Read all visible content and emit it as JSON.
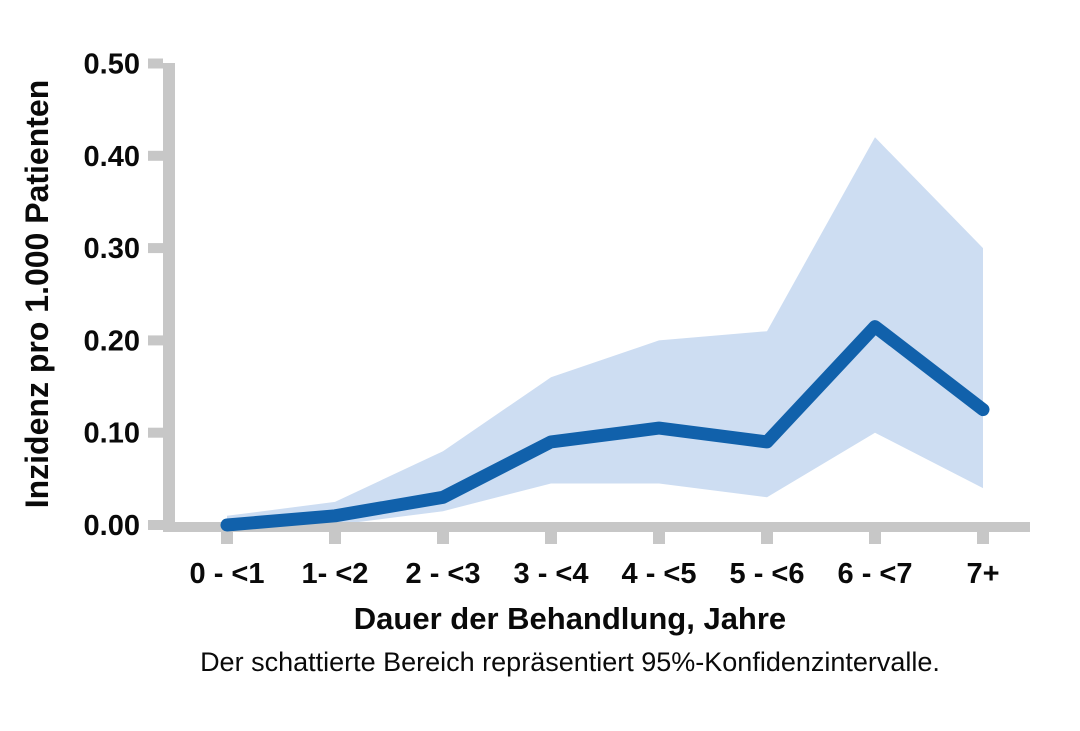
{
  "chart_data": {
    "type": "line",
    "title": "",
    "xlabel": "Dauer der Behandlung, Jahre",
    "ylabel": "Inzidenz pro 1.000 Patienten",
    "caption": "Der schattierte Bereich repräsentiert 95%-Konfidenzintervalle.",
    "categories": [
      "0 - <1",
      "1- <2",
      "2 - <3",
      "3 - <4",
      "4 - <5",
      "5 - <6",
      "6 - <7",
      "7+"
    ],
    "series": [
      {
        "name": "Inzidenz pro 1.000 Patienten",
        "values": [
          0.0,
          0.01,
          0.03,
          0.09,
          0.105,
          0.09,
          0.215,
          0.125
        ]
      }
    ],
    "ci_lower": [
      0.0,
      0.0,
      0.015,
      0.045,
      0.045,
      0.03,
      0.1,
      0.04
    ],
    "ci_upper": [
      0.01,
      0.025,
      0.08,
      0.16,
      0.2,
      0.21,
      0.42,
      0.3
    ],
    "ci_label": "95%-Konfidenzintervalle",
    "ylim": [
      0.0,
      0.5
    ],
    "ytick_labels": [
      "0.00",
      "0.10",
      "0.20",
      "0.30",
      "0.40",
      "0.50"
    ],
    "grid": "off",
    "legend": "none",
    "colors": {
      "line": "#1161ab",
      "band": "#cdddf2",
      "axis": "#c7c7c7",
      "text": "#0a0a0a"
    }
  }
}
